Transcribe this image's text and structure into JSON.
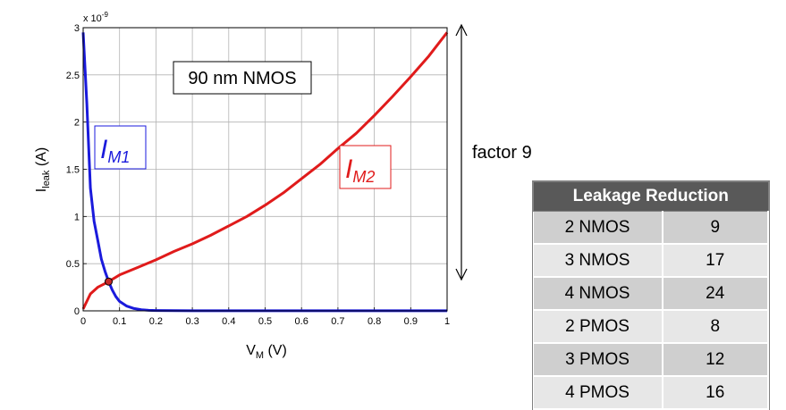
{
  "chart_data": {
    "type": "line",
    "title": "",
    "xlabel_main": "V",
    "xlabel_sub": "M",
    "xlabel_unit": " (V)",
    "ylabel_main": "I",
    "ylabel_sub": "leak",
    "ylabel_unit": " (A)",
    "y_multiplier": "x 10",
    "y_multiplier_exp": "-9",
    "xlim": [
      0,
      1
    ],
    "ylim": [
      0,
      3
    ],
    "grid": true,
    "xticks": [
      "0",
      "0.1",
      "0.2",
      "0.3",
      "0.4",
      "0.5",
      "0.6",
      "0.7",
      "0.8",
      "0.9",
      "1"
    ],
    "yticks": [
      "0",
      "0.5",
      "1",
      "1.5",
      "2",
      "2.5",
      "3"
    ],
    "xtick_values": [
      0,
      0.1,
      0.2,
      0.3,
      0.4,
      0.5,
      0.6,
      0.7,
      0.8,
      0.9,
      1
    ],
    "ytick_values": [
      0,
      0.5,
      1,
      1.5,
      2,
      2.5,
      3
    ],
    "annotation_box": "90 nm NMOS",
    "series": [
      {
        "label_main": "I",
        "label_sub": "M1",
        "color": "#1a1adc",
        "x": [
          0,
          0.01,
          0.02,
          0.03,
          0.04,
          0.05,
          0.06,
          0.07,
          0.08,
          0.09,
          0.1,
          0.12,
          0.14,
          0.16,
          0.18,
          0.2,
          0.25,
          0.3,
          0.4,
          0.5,
          0.6,
          0.7,
          0.8,
          0.9,
          1
        ],
        "y": [
          2.95,
          2.2,
          1.3,
          0.95,
          0.75,
          0.55,
          0.42,
          0.31,
          0.22,
          0.15,
          0.1,
          0.05,
          0.025,
          0.012,
          0.006,
          0.004,
          0.002,
          0.001,
          0.001,
          0.001,
          0.001,
          0.001,
          0.001,
          0.001,
          0.001
        ]
      },
      {
        "label_main": "I",
        "label_sub": "M2",
        "color": "#e01b1b",
        "x": [
          0,
          0.02,
          0.04,
          0.06,
          0.07,
          0.1,
          0.15,
          0.2,
          0.25,
          0.3,
          0.35,
          0.4,
          0.45,
          0.5,
          0.55,
          0.6,
          0.65,
          0.7,
          0.75,
          0.8,
          0.85,
          0.9,
          0.95,
          1
        ],
        "y": [
          0.02,
          0.18,
          0.25,
          0.29,
          0.31,
          0.38,
          0.46,
          0.54,
          0.63,
          0.71,
          0.8,
          0.9,
          1.0,
          1.12,
          1.25,
          1.4,
          1.55,
          1.72,
          1.88,
          2.07,
          2.27,
          2.48,
          2.7,
          2.95
        ]
      }
    ],
    "intersection": {
      "x": 0.07,
      "y": 0.31
    }
  },
  "factor_label": "factor 9",
  "leakage_table": {
    "header": "Leakage Reduction",
    "rows": [
      {
        "config": "2 NMOS",
        "value": "9"
      },
      {
        "config": "3 NMOS",
        "value": "17"
      },
      {
        "config": "4 NMOS",
        "value": "24"
      },
      {
        "config": "2 PMOS",
        "value": "8"
      },
      {
        "config": "3 PMOS",
        "value": "12"
      },
      {
        "config": "4 PMOS",
        "value": "16"
      }
    ]
  }
}
